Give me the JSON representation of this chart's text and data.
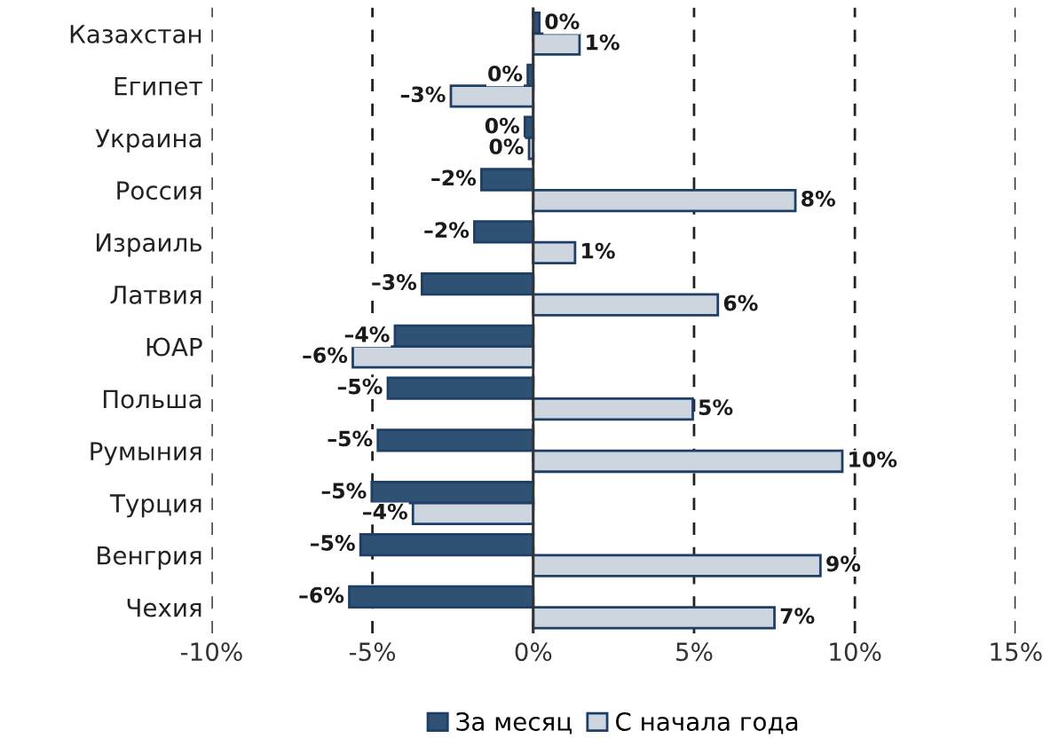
{
  "chart_data": {
    "type": "bar",
    "orientation": "horizontal",
    "categories": [
      "Казахстан",
      "Египет",
      "Украина",
      "Россия",
      "Израиль",
      "Латвия",
      "ЮАР",
      "Польша",
      "Румыния",
      "Турция",
      "Венгрия",
      "Чехия"
    ],
    "series": [
      {
        "name": "За месяц",
        "color": "#2f5274",
        "values": [
          0.19,
          -0.17,
          -0.26,
          -1.61,
          -1.83,
          -3.46,
          -4.3,
          -4.52,
          -4.83,
          -5.02,
          -5.37,
          -5.72
        ],
        "value_labels": [
          "0%",
          "0%",
          "0%",
          "–2%",
          "–2%",
          "–3%",
          "–4%",
          "–5%",
          "–5%",
          "–5%",
          "–5%",
          "–6%"
        ]
      },
      {
        "name": "С начала года",
        "color": "#cdd5de",
        "values": [
          1.44,
          -2.56,
          -0.13,
          8.15,
          1.3,
          5.74,
          -5.61,
          4.96,
          9.61,
          -3.74,
          8.93,
          7.5
        ],
        "value_labels": [
          "1%",
          "–3%",
          "0%",
          "8%",
          "1%",
          "6%",
          "–6%",
          "5%",
          "10%",
          "–4%",
          "9%",
          "7%"
        ]
      }
    ],
    "xlim": [
      -10,
      15
    ],
    "xticks": [
      {
        "value": -10,
        "label": "-10%"
      },
      {
        "value": -5,
        "label": "-5%"
      },
      {
        "value": 0,
        "label": "0%"
      },
      {
        "value": 5,
        "label": "5%"
      },
      {
        "value": 10,
        "label": "10%"
      },
      {
        "value": 15,
        "label": "15%"
      }
    ],
    "grid": "x",
    "legend": "bottom"
  }
}
